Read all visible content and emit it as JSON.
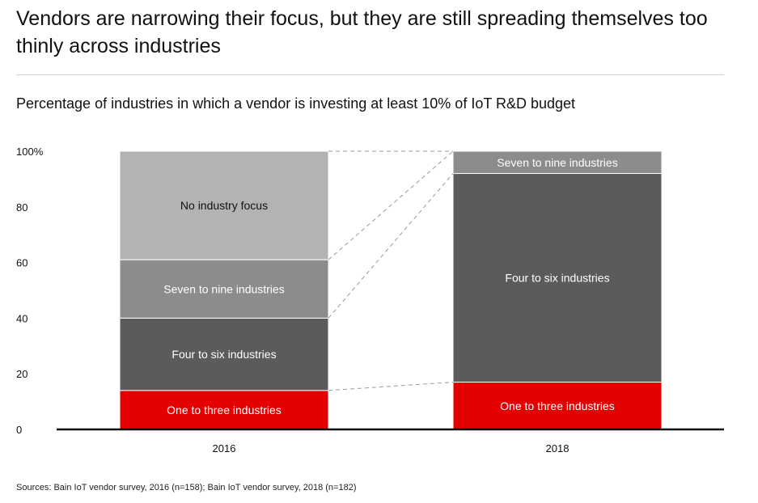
{
  "title": "Vendors are narrowing their focus, but they are still spreading themselves too thinly across industries",
  "subtitle": "Percentage of industries in which a vendor is investing at least 10% of IoT R&D budget",
  "source": "Sources: Bain IoT vendor survey, 2016 (n=158); Bain IoT vendor survey, 2018 (n=182)",
  "chart_data": {
    "type": "bar",
    "stacked": true,
    "categories": [
      "2016",
      "2018"
    ],
    "series": [
      {
        "name": "One to three industries",
        "values": [
          14,
          17
        ],
        "color": "#e20000",
        "text_color": "#ffffff"
      },
      {
        "name": "Four to six industries",
        "values": [
          26,
          75
        ],
        "color": "#5b5b5b",
        "text_color": "#ffffff"
      },
      {
        "name": "Seven to nine industries",
        "values": [
          21,
          8
        ],
        "color": "#8c8c8c",
        "text_color": "#ffffff"
      },
      {
        "name": "No industry focus",
        "values": [
          39,
          0
        ],
        "color": "#b3b3b3",
        "text_color": "#111111"
      }
    ],
    "ylim": [
      0,
      100
    ],
    "y_ticks": [
      {
        "value": 0,
        "label": "0"
      },
      {
        "value": 20,
        "label": "20"
      },
      {
        "value": 40,
        "label": "40"
      },
      {
        "value": 60,
        "label": "60"
      },
      {
        "value": 80,
        "label": "80"
      },
      {
        "value": 100,
        "label": "100%"
      }
    ],
    "connectors": "dashed lines linking segment boundaries between bars",
    "grid": false,
    "legend": "none (labels inside segments)"
  }
}
